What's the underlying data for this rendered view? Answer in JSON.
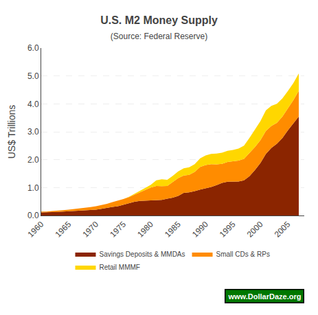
{
  "chart_data": {
    "type": "area",
    "stacked": true,
    "title": "U.S. M2 Money Supply",
    "subtitle": "(Source: Federal Reserve)",
    "ylabel": "US$ Trillions",
    "x": [
      1960,
      1961,
      1962,
      1963,
      1964,
      1965,
      1966,
      1967,
      1968,
      1969,
      1970,
      1971,
      1972,
      1973,
      1974,
      1975,
      1976,
      1977,
      1978,
      1979,
      1980,
      1981,
      1982,
      1983,
      1984,
      1985,
      1986,
      1987,
      1988,
      1989,
      1990,
      1991,
      1992,
      1993,
      1994,
      1995,
      1996,
      1997,
      1998,
      1999,
      2000,
      2001,
      2002,
      2003,
      2004,
      2005,
      2006,
      2007
    ],
    "series": [
      {
        "name": "Savings Deposits & MMDAs",
        "color": "#8B2500",
        "values": [
          0.11,
          0.11,
          0.12,
          0.13,
          0.14,
          0.15,
          0.16,
          0.17,
          0.18,
          0.19,
          0.21,
          0.24,
          0.28,
          0.31,
          0.33,
          0.38,
          0.44,
          0.49,
          0.52,
          0.53,
          0.53,
          0.54,
          0.56,
          0.6,
          0.64,
          0.7,
          0.81,
          0.83,
          0.87,
          0.93,
          0.97,
          1.02,
          1.09,
          1.17,
          1.21,
          1.21,
          1.22,
          1.26,
          1.41,
          1.63,
          1.88,
          2.21,
          2.42,
          2.57,
          2.77,
          3.05,
          3.3,
          3.55
        ]
      },
      {
        "name": "Small CDs & RPs",
        "color": "#FF8C00",
        "values": [
          0.03,
          0.03,
          0.04,
          0.04,
          0.05,
          0.06,
          0.07,
          0.08,
          0.09,
          0.11,
          0.12,
          0.13,
          0.14,
          0.17,
          0.2,
          0.21,
          0.22,
          0.26,
          0.32,
          0.4,
          0.47,
          0.52,
          0.49,
          0.46,
          0.56,
          0.64,
          0.62,
          0.63,
          0.69,
          0.81,
          0.84,
          0.82,
          0.74,
          0.68,
          0.71,
          0.73,
          0.75,
          0.77,
          0.82,
          0.82,
          0.82,
          0.82,
          0.79,
          0.75,
          0.77,
          0.79,
          0.83,
          0.92
        ]
      },
      {
        "name": "Retail MMMF",
        "color": "#FFD700",
        "values": [
          0.0,
          0.0,
          0.0,
          0.0,
          0.0,
          0.0,
          0.0,
          0.0,
          0.0,
          0.0,
          0.0,
          0.0,
          0.0,
          0.0,
          0.0,
          0.0,
          0.01,
          0.02,
          0.03,
          0.06,
          0.1,
          0.2,
          0.25,
          0.22,
          0.22,
          0.24,
          0.26,
          0.27,
          0.28,
          0.31,
          0.34,
          0.37,
          0.39,
          0.4,
          0.4,
          0.41,
          0.43,
          0.47,
          0.55,
          0.63,
          0.68,
          0.74,
          0.72,
          0.68,
          0.65,
          0.62,
          0.61,
          0.62
        ]
      }
    ],
    "xlim": [
      1960,
      2008
    ],
    "xticks": [
      1960,
      1965,
      1970,
      1975,
      1980,
      1985,
      1990,
      1995,
      2000,
      2005
    ],
    "ylim": [
      0,
      6.0
    ],
    "yticks": [
      {
        "value": 0.0,
        "label": "0.0"
      },
      {
        "value": 1.0,
        "label": "1.0"
      },
      {
        "value": 2.0,
        "label": "2.0"
      },
      {
        "value": 3.0,
        "label": "3.0"
      },
      {
        "value": 4.0,
        "label": "4.0"
      },
      {
        "value": 5.0,
        "label": "5.0"
      },
      {
        "value": 6.0,
        "label": "6.0"
      }
    ],
    "grid": true,
    "legend": "bottom",
    "annotations": [
      {
        "text": "www.DollarDaze.org",
        "color": "#ffffff"
      }
    ]
  }
}
